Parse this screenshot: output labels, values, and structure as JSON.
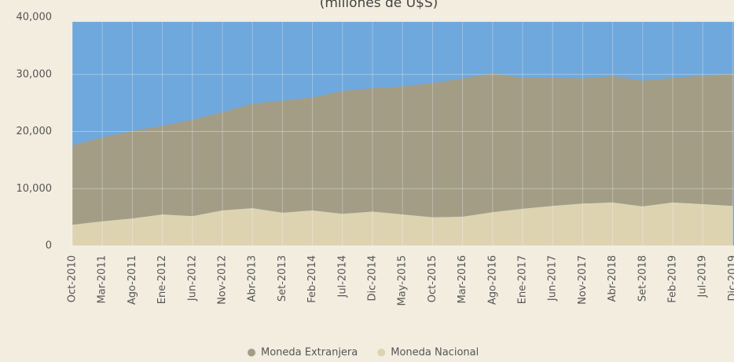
{
  "chart_data": {
    "type": "stacked_area",
    "title": "(millones de U$S)",
    "categories": [
      "Oct-2010",
      "Mar-2011",
      "Ago-2011",
      "Ene-2012",
      "Jun-2012",
      "Nov-2012",
      "Abr-2013",
      "Set-2013",
      "Feb-2014",
      "Jul-2014",
      "Dic-2014",
      "May-2015",
      "Oct-2015",
      "Mar-2016",
      "Ago-2016",
      "Ene-2017",
      "Jun-2017",
      "Nov-2017",
      "Abr-2018",
      "Set-2018",
      "Feb-2019",
      "Jul-2019",
      "Dic-2019"
    ],
    "series": [
      {
        "name": "Moneda Extranjera",
        "color": "#a39d86",
        "values": [
          13900,
          14700,
          15300,
          15500,
          16900,
          17200,
          18300,
          19600,
          19800,
          21500,
          21600,
          22400,
          23500,
          24200,
          24300,
          22900,
          22400,
          21900,
          22100,
          22000,
          21800,
          22500,
          23100
        ]
      },
      {
        "name": "Moneda Nacional",
        "color": "#ddd3b1",
        "values": [
          3700,
          4300,
          4800,
          5500,
          5200,
          6200,
          6600,
          5800,
          6200,
          5600,
          6000,
          5500,
          5000,
          5100,
          5900,
          6500,
          7000,
          7400,
          7600,
          6900,
          7600,
          7300,
          7000
        ]
      }
    ],
    "ylim": [
      0,
      40000
    ],
    "yticks": [
      0,
      {
        "value": 10000,
        "label": "10,000"
      },
      {
        "value": 20000,
        "label": "20,000"
      },
      {
        "value": 30000,
        "label": "30,000"
      },
      {
        "value": 40000,
        "label": "40,000"
      }
    ],
    "grid": true,
    "legend": "bottom",
    "plot_background": "#6fa8dc"
  }
}
